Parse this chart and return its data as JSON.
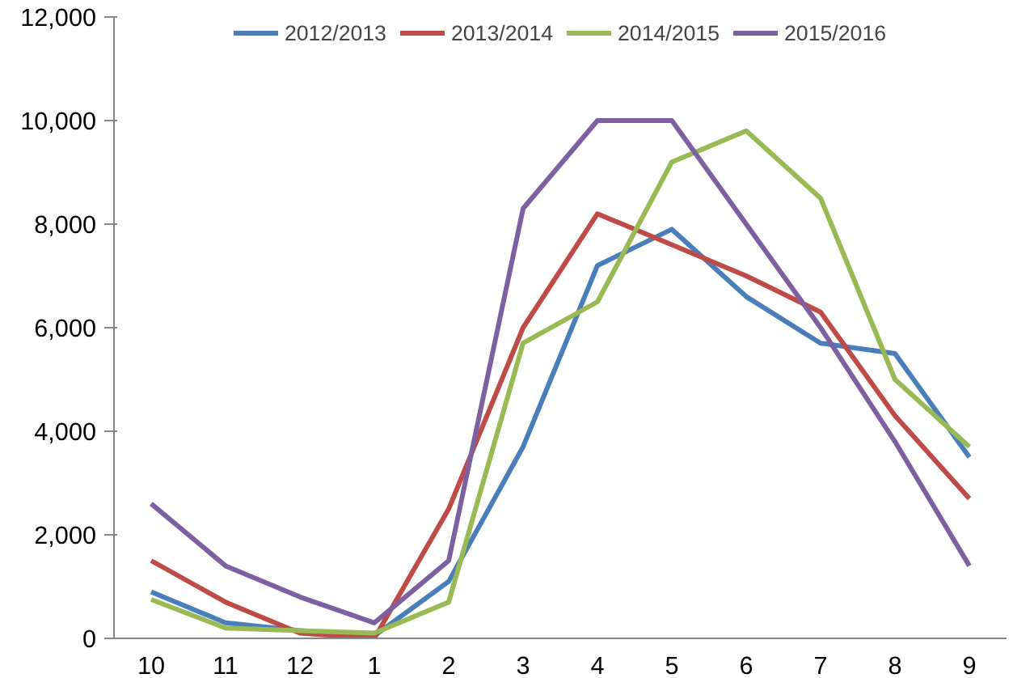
{
  "chart_data": {
    "type": "line",
    "categories": [
      "10",
      "11",
      "12",
      "1",
      "2",
      "3",
      "4",
      "5",
      "6",
      "7",
      "8",
      "9"
    ],
    "series": [
      {
        "name": "2012/2013",
        "color": "#4a7ebb",
        "values": [
          900,
          300,
          150,
          50,
          1100,
          3700,
          7200,
          7900,
          6600,
          5700,
          5500,
          3500
        ]
      },
      {
        "name": "2013/2014",
        "color": "#be4b48",
        "values": [
          1500,
          700,
          100,
          0,
          2500,
          6000,
          8200,
          7600,
          7000,
          6300,
          4300,
          2700
        ]
      },
      {
        "name": "2014/2015",
        "color": "#98b954",
        "values": [
          750,
          200,
          150,
          100,
          700,
          5700,
          6500,
          9200,
          9800,
          8500,
          5000,
          3700
        ]
      },
      {
        "name": "2015/2016",
        "color": "#7d60a0",
        "values": [
          2600,
          1400,
          800,
          300,
          1500,
          8300,
          10000,
          10000,
          8000,
          6000,
          3800,
          1400
        ]
      }
    ],
    "ylim": [
      0,
      12000
    ],
    "yticks": [
      {
        "value": 0,
        "label": "0"
      },
      {
        "value": 2000,
        "label": "2,000"
      },
      {
        "value": 4000,
        "label": "4,000"
      },
      {
        "value": 6000,
        "label": "6,000"
      },
      {
        "value": 8000,
        "label": "8,000"
      },
      {
        "value": 10000,
        "label": "10,000"
      },
      {
        "value": 12000,
        "label": "12,000"
      }
    ],
    "grid": false,
    "legend": "top",
    "marker": "none",
    "line_style": "solid"
  }
}
